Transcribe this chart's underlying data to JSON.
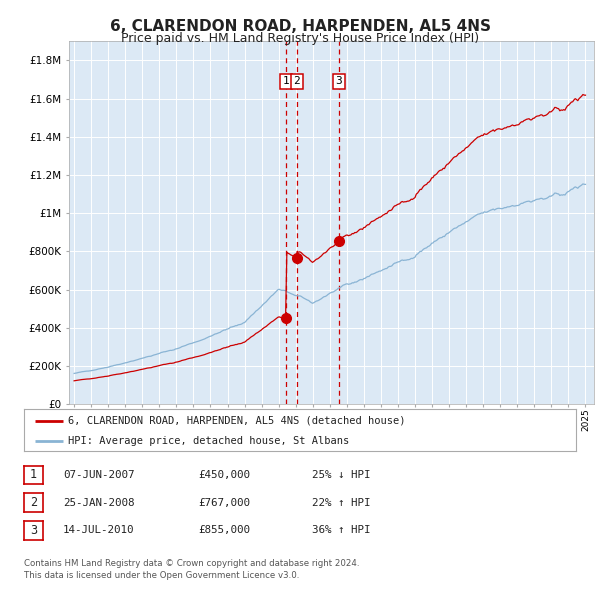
{
  "title": "6, CLARENDON ROAD, HARPENDEN, AL5 4NS",
  "subtitle": "Price paid vs. HM Land Registry's House Price Index (HPI)",
  "title_fontsize": 11,
  "subtitle_fontsize": 9,
  "background_color": "#ffffff",
  "plot_bg_color": "#dce9f5",
  "grid_color": "#ffffff",
  "hpi_line_color": "#8ab4d4",
  "price_line_color": "#cc0000",
  "purchase_marker_color": "#cc0000",
  "dashed_line_color": "#cc0000",
  "ylim": [
    0,
    1900000
  ],
  "yticks": [
    0,
    200000,
    400000,
    600000,
    800000,
    1000000,
    1200000,
    1400000,
    1600000,
    1800000
  ],
  "ytick_labels": [
    "£0",
    "£200K",
    "£400K",
    "£600K",
    "£800K",
    "£1M",
    "£1.2M",
    "£1.4M",
    "£1.6M",
    "£1.8M"
  ],
  "xstart": 1995,
  "xend": 2025,
  "purchases": [
    {
      "label": "1",
      "date": 2007.44,
      "price": 450000
    },
    {
      "label": "2",
      "date": 2008.07,
      "price": 767000
    },
    {
      "label": "3",
      "date": 2010.54,
      "price": 855000
    }
  ],
  "legend_entries": [
    {
      "color": "#cc0000",
      "text": "6, CLARENDON ROAD, HARPENDEN, AL5 4NS (detached house)"
    },
    {
      "color": "#8ab4d4",
      "text": "HPI: Average price, detached house, St Albans"
    }
  ],
  "table_rows": [
    {
      "num": "1",
      "date": "07-JUN-2007",
      "price": "£450,000",
      "change": "25% ↓ HPI"
    },
    {
      "num": "2",
      "date": "25-JAN-2008",
      "price": "£767,000",
      "change": "22% ↑ HPI"
    },
    {
      "num": "3",
      "date": "14-JUL-2010",
      "price": "£855,000",
      "change": "36% ↑ HPI"
    }
  ],
  "footnote": "Contains HM Land Registry data © Crown copyright and database right 2024.\nThis data is licensed under the Open Government Licence v3.0."
}
